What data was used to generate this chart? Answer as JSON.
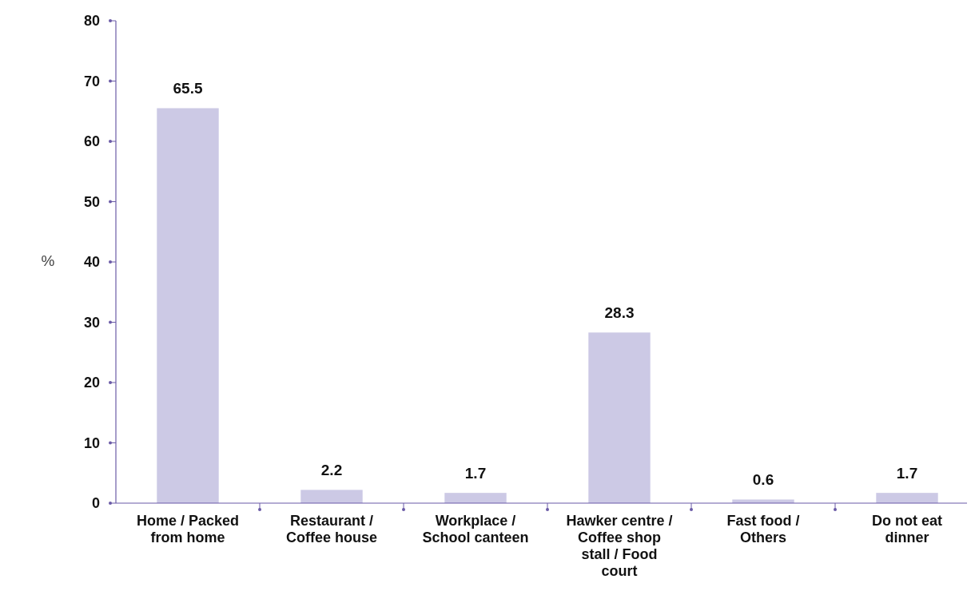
{
  "chart_data": {
    "type": "bar",
    "ylabel": "%",
    "categories": [
      "Home / Packed from home",
      "Restaurant / Coffee house",
      "Workplace / School canteen",
      "Hawker centre / Coffee shop stall / Food court",
      "Fast food / Others",
      "Do not eat dinner"
    ],
    "values": [
      65.5,
      2.2,
      1.7,
      28.3,
      0.6,
      1.7
    ],
    "color": "#ccc9e5",
    "ylim": [
      0,
      80
    ],
    "yticks": [
      0,
      10,
      20,
      30,
      40,
      50,
      60,
      70,
      80
    ],
    "grid": false,
    "data_labels": true
  }
}
